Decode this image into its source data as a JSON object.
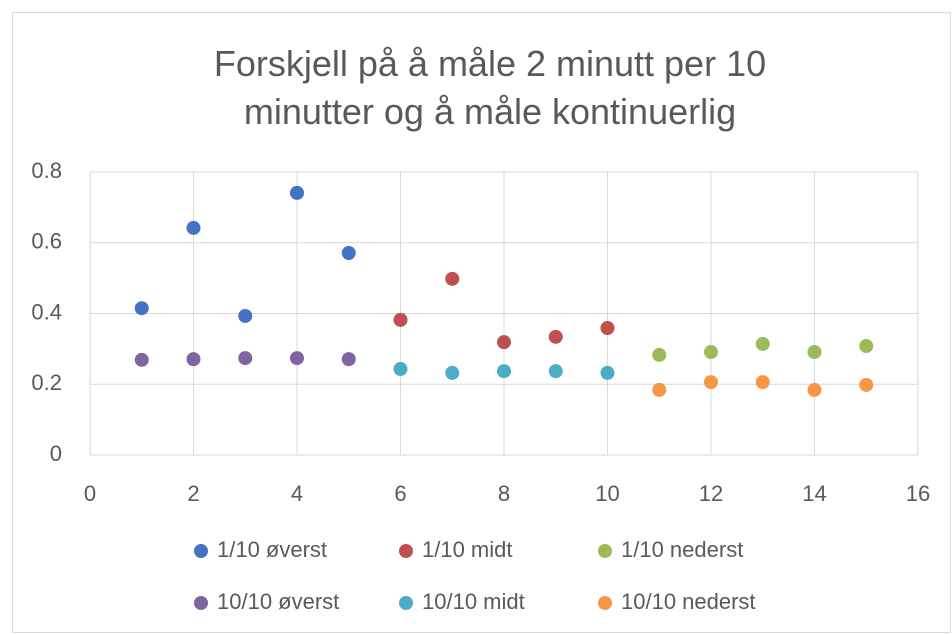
{
  "chart_data": {
    "type": "scatter",
    "title": "Forskjell på å måle 2 minutt per 10 minutter og å måle kontinuerlig",
    "xlim": [
      0,
      16
    ],
    "xticks": [
      0,
      2,
      4,
      6,
      8,
      10,
      12,
      14,
      16
    ],
    "ylim": [
      0,
      0.8
    ],
    "yticks": [
      0,
      0.2,
      0.4,
      0.6,
      0.8
    ],
    "grid": true,
    "legend": "bottom",
    "series": [
      {
        "name": "1/10 øverst",
        "color": "#4472c4",
        "x": [
          1,
          2,
          3,
          4,
          5
        ],
        "values": [
          0.415,
          0.642,
          0.393,
          0.741,
          0.571
        ]
      },
      {
        "name": "1/10 midt",
        "color": "#c0504d",
        "x": [
          6,
          7,
          8,
          9,
          10
        ],
        "values": [
          0.382,
          0.498,
          0.319,
          0.334,
          0.359
        ]
      },
      {
        "name": "1/10 nederst",
        "color": "#9bbb59",
        "x": [
          11,
          12,
          13,
          14,
          15
        ],
        "values": [
          0.283,
          0.291,
          0.314,
          0.291,
          0.308
        ]
      },
      {
        "name": "10/10 øverst",
        "color": "#8064a2",
        "x": [
          1,
          2,
          3,
          4,
          5
        ],
        "values": [
          0.269,
          0.271,
          0.274,
          0.274,
          0.271
        ]
      },
      {
        "name": "10/10 midt",
        "color": "#4bacc6",
        "x": [
          6,
          7,
          8,
          9,
          10
        ],
        "values": [
          0.243,
          0.232,
          0.237,
          0.237,
          0.232
        ]
      },
      {
        "name": "10/10 nederst",
        "color": "#f79646",
        "x": [
          11,
          12,
          13,
          14,
          15
        ],
        "values": [
          0.184,
          0.206,
          0.206,
          0.184,
          0.198
        ]
      }
    ]
  }
}
